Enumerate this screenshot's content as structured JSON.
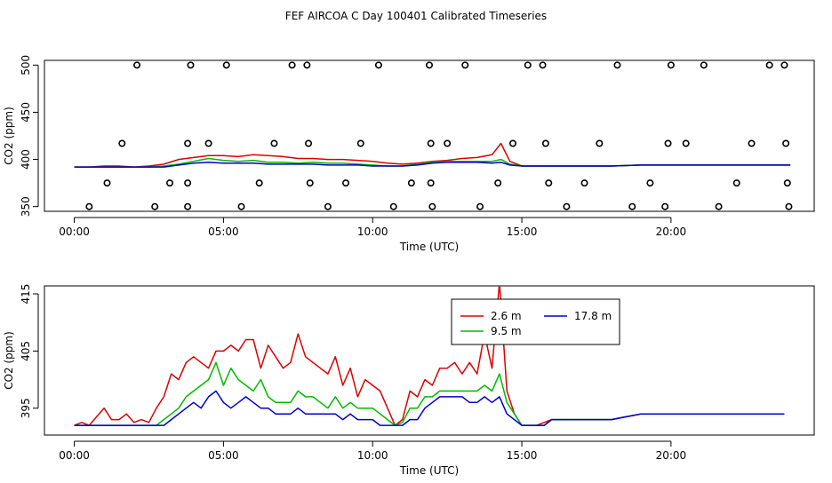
{
  "title": "FEF AIRCOA C  Day 100401  Calibrated Timeseries",
  "colors": {
    "h2_6": "#dd0000",
    "h9_5": "#00bb00",
    "h17_8": "#0000cc",
    "flags": "#000000"
  },
  "chart_data": [
    {
      "type": "line",
      "id": "overview",
      "xlabel": "Time (UTC)",
      "ylabel": "CO2 (ppm)",
      "xlim": [
        -1.0,
        24.8
      ],
      "ylim": [
        345,
        505
      ],
      "xticks": [
        0,
        5,
        10,
        15,
        20
      ],
      "xtick_labels": [
        "00:00",
        "05:00",
        "10:00",
        "15:00",
        "20:00"
      ],
      "yticks": [
        350,
        400,
        450,
        500
      ],
      "ytick_labels": [
        "350",
        "400",
        "450",
        "500"
      ],
      "series": [
        {
          "name": "2.6 m",
          "color": "#dd0000",
          "x": [
            0,
            0.5,
            1,
            1.5,
            2,
            2.5,
            3,
            3.5,
            4,
            4.5,
            5,
            5.5,
            6,
            6.5,
            7,
            7.5,
            8,
            8.5,
            9,
            9.5,
            10,
            10.5,
            11,
            11.5,
            12,
            12.5,
            13,
            13.5,
            14,
            14.3,
            14.6,
            15,
            16,
            17,
            18,
            19,
            20,
            21,
            22,
            23,
            24
          ],
          "y": [
            392,
            392,
            393,
            393,
            392,
            393,
            395,
            400,
            402,
            404,
            404,
            403,
            405,
            404,
            403,
            401,
            401,
            400,
            400,
            399,
            398,
            396,
            395,
            396,
            398,
            399,
            401,
            402,
            405,
            417,
            398,
            393,
            393,
            393,
            393,
            394,
            394,
            394,
            394,
            394,
            394
          ]
        },
        {
          "name": "9.5 m",
          "color": "#00bb00",
          "x": [
            0,
            0.5,
            1,
            1.5,
            2,
            2.5,
            3,
            3.5,
            4,
            4.5,
            5,
            5.5,
            6,
            6.5,
            7,
            7.5,
            8,
            8.5,
            9,
            9.5,
            10,
            10.5,
            11,
            11.5,
            12,
            12.5,
            13,
            13.5,
            14,
            14.3,
            14.6,
            15,
            16,
            17,
            18,
            19,
            20,
            21,
            22,
            23,
            24
          ],
          "y": [
            392,
            392,
            392,
            392,
            392,
            392,
            393,
            395,
            398,
            401,
            399,
            398,
            399,
            397,
            397,
            396,
            397,
            396,
            396,
            395,
            394,
            393,
            393,
            395,
            397,
            398,
            398,
            398,
            398,
            400,
            395,
            393,
            393,
            393,
            393,
            394,
            394,
            394,
            394,
            394,
            394
          ]
        },
        {
          "name": "17.8 m",
          "color": "#0000cc",
          "x": [
            0,
            0.5,
            1,
            1.5,
            2,
            2.5,
            3,
            3.5,
            4,
            4.5,
            5,
            5.5,
            6,
            6.5,
            7,
            7.5,
            8,
            8.5,
            9,
            9.5,
            10,
            10.5,
            11,
            11.5,
            12,
            12.5,
            13,
            13.5,
            14,
            14.3,
            14.6,
            15,
            16,
            17,
            18,
            19,
            20,
            21,
            22,
            23,
            24
          ],
          "y": [
            392,
            392,
            392,
            392,
            392,
            392,
            392,
            394,
            396,
            397,
            396,
            396,
            396,
            395,
            395,
            395,
            395,
            394,
            394,
            394,
            393,
            393,
            393,
            394,
            396,
            397,
            397,
            397,
            396,
            397,
            394,
            393,
            393,
            393,
            393,
            394,
            394,
            394,
            394,
            394,
            394
          ]
        }
      ],
      "flags": {
        "x": [
          0.5,
          1.1,
          1.6,
          2.1,
          2.7,
          3.2,
          3.8,
          3.8,
          3.8,
          3.9,
          4.5,
          5.1,
          5.6,
          6.2,
          6.7,
          7.3,
          7.8,
          7.85,
          7.9,
          8.5,
          9.1,
          9.6,
          10.2,
          10.7,
          11.3,
          11.9,
          11.95,
          11.95,
          12.0,
          12.5,
          13.1,
          13.6,
          14.2,
          14.7,
          15.2,
          15.7,
          15.8,
          15.9,
          16.5,
          17.1,
          17.6,
          18.2,
          18.7,
          19.3,
          19.8,
          19.9,
          20.0,
          20.5,
          21.1,
          21.6,
          22.2,
          22.7,
          23.3,
          23.8,
          23.85,
          23.9,
          23.95
        ],
        "y": [
          350,
          375,
          417,
          500,
          350,
          375,
          350,
          375,
          417,
          500,
          417,
          500,
          350,
          375,
          417,
          500,
          500,
          417,
          375,
          350,
          375,
          417,
          500,
          350,
          375,
          500,
          417,
          375,
          350,
          417,
          500,
          350,
          375,
          417,
          500,
          500,
          417,
          375,
          350,
          375,
          417,
          500,
          350,
          375,
          350,
          417,
          500,
          417,
          500,
          350,
          375,
          417,
          500,
          500,
          417,
          375,
          350
        ]
      }
    },
    {
      "type": "line",
      "id": "detail",
      "xlabel": "Time (UTC)",
      "ylabel": "CO2 (ppm)",
      "xlim": [
        -1.0,
        24.8
      ],
      "ylim": [
        390.3,
        416.4
      ],
      "xticks": [
        0,
        5,
        10,
        15,
        20
      ],
      "xtick_labels": [
        "00:00",
        "05:00",
        "10:00",
        "15:00",
        "20:00"
      ],
      "yticks": [
        395,
        405,
        415
      ],
      "ytick_labels": [
        "395",
        "405",
        "415"
      ],
      "legend": {
        "placement": "top-center",
        "entries": [
          {
            "label": "2.6 m",
            "color": "#dd0000"
          },
          {
            "label": "17.8 m",
            "color": "#0000cc"
          },
          {
            "label": "9.5 m",
            "color": "#00bb00"
          }
        ]
      },
      "series": [
        {
          "name": "2.6 m",
          "color": "#dd0000",
          "x": [
            0.0,
            0.25,
            0.5,
            0.75,
            1.0,
            1.25,
            1.5,
            1.75,
            2.0,
            2.25,
            2.5,
            2.75,
            3.0,
            3.25,
            3.5,
            3.75,
            4.0,
            4.25,
            4.5,
            4.75,
            5.0,
            5.25,
            5.5,
            5.75,
            6.0,
            6.25,
            6.5,
            6.75,
            7.0,
            7.25,
            7.5,
            7.75,
            8.0,
            8.25,
            8.5,
            8.75,
            9.0,
            9.25,
            9.5,
            9.75,
            10.0,
            10.25,
            10.5,
            10.75,
            11.0,
            11.25,
            11.5,
            11.75,
            12.0,
            12.25,
            12.5,
            12.75,
            13.0,
            13.25,
            13.5,
            13.75,
            14.0,
            14.25,
            14.5,
            14.75,
            15.0,
            15.25,
            15.5,
            15.75,
            16.0,
            16.5,
            17.0,
            17.5,
            18.0,
            18.5,
            19.0,
            19.5,
            20.0,
            20.5,
            21.0,
            21.5,
            22.0,
            22.5,
            23.0,
            23.5,
            23.8
          ],
          "y": [
            392,
            392.5,
            392,
            393.5,
            395,
            393,
            393,
            394,
            392.5,
            393,
            392.5,
            395,
            397,
            401,
            400,
            403,
            404,
            403,
            402,
            405,
            405,
            406,
            405,
            407,
            407,
            402,
            406,
            404,
            402,
            403,
            408,
            404,
            403,
            402,
            401,
            404,
            399,
            402,
            397,
            400,
            399,
            398,
            395,
            392,
            393,
            398,
            397,
            400,
            399,
            402,
            402,
            403,
            401,
            403,
            401,
            408,
            402,
            417,
            398,
            394,
            392,
            392,
            392,
            392.5,
            393,
            393,
            393,
            393,
            393,
            393.5,
            394,
            394,
            394,
            394,
            394,
            394,
            394,
            394,
            394,
            394,
            394
          ]
        },
        {
          "name": "9.5 m",
          "color": "#00bb00",
          "x": [
            0.0,
            0.25,
            0.5,
            0.75,
            1.0,
            1.25,
            1.5,
            1.75,
            2.0,
            2.25,
            2.5,
            2.75,
            3.0,
            3.25,
            3.5,
            3.75,
            4.0,
            4.25,
            4.5,
            4.75,
            5.0,
            5.25,
            5.5,
            5.75,
            6.0,
            6.25,
            6.5,
            6.75,
            7.0,
            7.25,
            7.5,
            7.75,
            8.0,
            8.25,
            8.5,
            8.75,
            9.0,
            9.25,
            9.5,
            9.75,
            10.0,
            10.25,
            10.5,
            10.75,
            11.0,
            11.25,
            11.5,
            11.75,
            12.0,
            12.25,
            12.5,
            12.75,
            13.0,
            13.25,
            13.5,
            13.75,
            14.0,
            14.25,
            14.5,
            14.75,
            15.0,
            15.25,
            15.5,
            15.75,
            16.0,
            16.5,
            17.0,
            17.5,
            18.0,
            18.5,
            19.0,
            19.5,
            20.0,
            20.5,
            21.0,
            21.5,
            22.0,
            22.5,
            23.0,
            23.5,
            23.8
          ],
          "y": [
            392,
            392,
            392,
            392,
            392,
            392,
            392,
            392,
            392,
            392,
            392,
            392,
            393,
            394,
            395,
            397,
            398,
            399,
            400,
            403,
            399,
            402,
            400,
            399,
            398,
            400,
            397,
            396,
            396,
            396,
            398,
            397,
            397,
            396,
            395,
            397,
            395,
            396,
            395,
            395,
            395,
            394,
            393,
            392,
            392.5,
            395,
            395,
            397,
            397,
            398,
            398,
            398,
            398,
            398,
            398,
            399,
            398,
            401,
            396,
            394,
            392,
            392,
            392,
            392,
            393,
            393,
            393,
            393,
            393,
            393.5,
            394,
            394,
            394,
            394,
            394,
            394,
            394,
            394,
            394,
            394,
            394
          ]
        },
        {
          "name": "17.8 m",
          "color": "#0000cc",
          "x": [
            0.0,
            0.25,
            0.5,
            0.75,
            1.0,
            1.25,
            1.5,
            1.75,
            2.0,
            2.25,
            2.5,
            2.75,
            3.0,
            3.25,
            3.5,
            3.75,
            4.0,
            4.25,
            4.5,
            4.75,
            5.0,
            5.25,
            5.5,
            5.75,
            6.0,
            6.25,
            6.5,
            6.75,
            7.0,
            7.25,
            7.5,
            7.75,
            8.0,
            8.25,
            8.5,
            8.75,
            9.0,
            9.25,
            9.5,
            9.75,
            10.0,
            10.25,
            10.5,
            10.75,
            11.0,
            11.25,
            11.5,
            11.75,
            12.0,
            12.25,
            12.5,
            12.75,
            13.0,
            13.25,
            13.5,
            13.75,
            14.0,
            14.25,
            14.5,
            14.75,
            15.0,
            15.25,
            15.5,
            15.75,
            16.0,
            16.5,
            17.0,
            17.5,
            18.0,
            18.5,
            19.0,
            19.5,
            20.0,
            20.5,
            21.0,
            21.5,
            22.0,
            22.5,
            23.0,
            23.5,
            23.8
          ],
          "y": [
            392,
            392,
            392,
            392,
            392,
            392,
            392,
            392,
            392,
            392,
            392,
            392,
            392,
            393,
            394,
            395,
            396,
            395,
            397,
            398,
            396,
            395,
            396,
            397,
            396,
            395,
            395,
            394,
            394,
            394,
            395,
            394,
            394,
            394,
            394,
            394,
            393,
            394,
            393,
            393,
            393,
            392,
            392,
            392,
            392,
            393,
            393,
            395,
            396,
            397,
            397,
            397,
            397,
            396,
            396,
            397,
            396,
            397,
            394,
            393,
            392,
            392,
            392,
            392,
            393,
            393,
            393,
            393,
            393,
            393.5,
            394,
            394,
            394,
            394,
            394,
            394,
            394,
            394,
            394,
            394,
            394
          ]
        }
      ]
    }
  ]
}
